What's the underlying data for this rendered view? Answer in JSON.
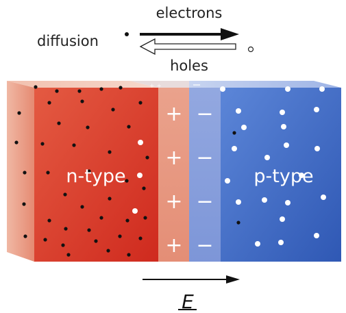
{
  "diagram": {
    "diffusion_label": "diffusion",
    "electrons_label": "electrons",
    "holes_label": "holes",
    "n_region_label": "n-type",
    "p_region_label": "p-type",
    "field_label": "E",
    "plus_sign": "+",
    "minus_sign": "−",
    "depletion_charge_rows": 4
  },
  "colors": {
    "n_type": "#e0503a",
    "n_type_dark": "#c8281c",
    "depletion_n": "#e8a088",
    "depletion_p": "#8aa0dc",
    "p_type": "#4a78d0",
    "p_type_dark": "#2c56b4",
    "electron": "#111111",
    "hole": "#ffffff"
  },
  "carriers": {
    "n_region": {
      "electrons": 42,
      "holes": 3
    },
    "p_region": {
      "holes": 24,
      "electrons": 2
    }
  }
}
